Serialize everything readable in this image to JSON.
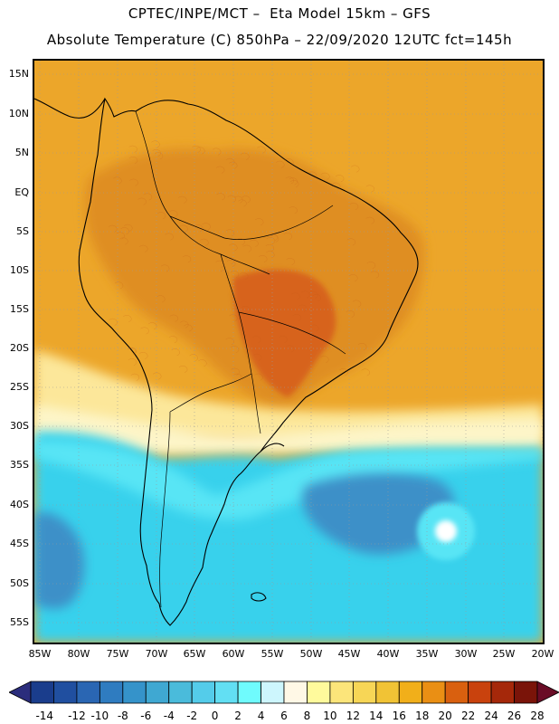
{
  "header": {
    "line1": "CPTEC/INPE/MCT –  Eta Model 15km – GFS",
    "line2": "Absolute Temperature (C) 850hPa – 22/09/2020 12UTC fct=145h"
  },
  "map": {
    "lat_labels": [
      "15N",
      "10N",
      "5N",
      "EQ",
      "5S",
      "10S",
      "15S",
      "20S",
      "25S",
      "30S",
      "35S",
      "40S",
      "45S",
      "50S",
      "55S"
    ],
    "lon_labels": [
      "85W",
      "80W",
      "75W",
      "70W",
      "65W",
      "60W",
      "55W",
      "50W",
      "45W",
      "40W",
      "35W",
      "30W",
      "25W",
      "20W"
    ],
    "field_colors": {
      "ocean_warm": "#eca62a",
      "continent": "#df8e20",
      "hot_core": "#d7641a",
      "transition": "#fce79a",
      "pale": "#fdf5c8",
      "cyan": "#38d1ec",
      "light_cyan": "#58e5f5",
      "blue": "#3d90c8",
      "coast": "#000000"
    }
  },
  "colorbar": {
    "labels": [
      "-14",
      "-12",
      "-10",
      "-8",
      "-6",
      "-4",
      "-2",
      "0",
      "2",
      "4",
      "6",
      "8",
      "10",
      "12",
      "14",
      "16",
      "18",
      "20",
      "22",
      "24",
      "26",
      "28"
    ],
    "colors": [
      "#1a3d8c",
      "#204fa0",
      "#2a66b3",
      "#2f7cc0",
      "#3593ca",
      "#3fa8d2",
      "#4abbdb",
      "#54ccea",
      "#62dff3",
      "#6ffbfd",
      "#cdf6fd",
      "#fff8e6",
      "#fffa9c",
      "#fce57a",
      "#f7d656",
      "#f1c335",
      "#f1af1a",
      "#ea8f14",
      "#d9600f",
      "#c9420d",
      "#a5280a",
      "#7a1409"
    ],
    "low_arrow_color": "#2b2d7c",
    "high_arrow_color": "#6a0c26"
  }
}
